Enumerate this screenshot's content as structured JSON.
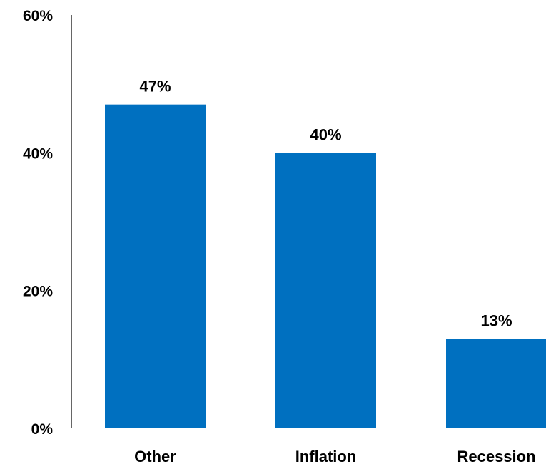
{
  "chart_data": {
    "type": "bar",
    "categories": [
      "Other",
      "Inflation",
      "Recession"
    ],
    "values": [
      47,
      40,
      13
    ],
    "data_labels": [
      "47%",
      "40%",
      "13%"
    ],
    "y_ticks": [
      {
        "value": 0,
        "label": "0%"
      },
      {
        "value": 20,
        "label": "20%"
      },
      {
        "value": 40,
        "label": "40%"
      },
      {
        "value": 60,
        "label": "60%"
      }
    ],
    "ylim": [
      0,
      60
    ],
    "grid": false,
    "legend": "none",
    "bar_color": "#0070C0",
    "axis_color": "#000000"
  }
}
